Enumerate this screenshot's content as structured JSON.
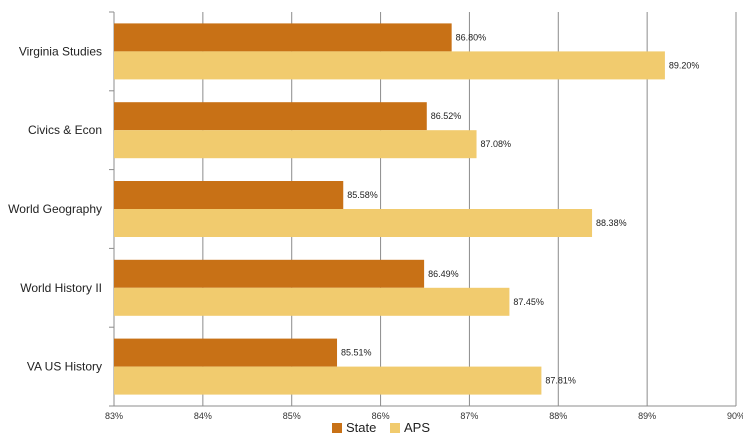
{
  "chart_data": {
    "type": "bar",
    "orientation": "horizontal",
    "categories": [
      "Virginia Studies",
      "Civics & Econ",
      "World Geography",
      "World History II",
      "VA US History"
    ],
    "series": [
      {
        "name": "State",
        "color": "#C87116",
        "values": [
          86.8,
          86.52,
          85.58,
          86.49,
          85.51
        ],
        "labels": [
          "86.80%",
          "86.52%",
          "85.58%",
          "86.49%",
          "85.51%"
        ]
      },
      {
        "name": "APS",
        "color": "#F1CB6E",
        "values": [
          89.2,
          87.08,
          88.38,
          87.45,
          87.81
        ],
        "labels": [
          "89.20%",
          "87.08%",
          "88.38%",
          "87.45%",
          "87.81%"
        ]
      }
    ],
    "xlim": [
      83,
      90
    ],
    "x_ticks": [
      "83%",
      "84%",
      "85%",
      "86%",
      "87%",
      "88%",
      "89%",
      "90%"
    ],
    "grid": true,
    "legend_position": "bottom"
  }
}
